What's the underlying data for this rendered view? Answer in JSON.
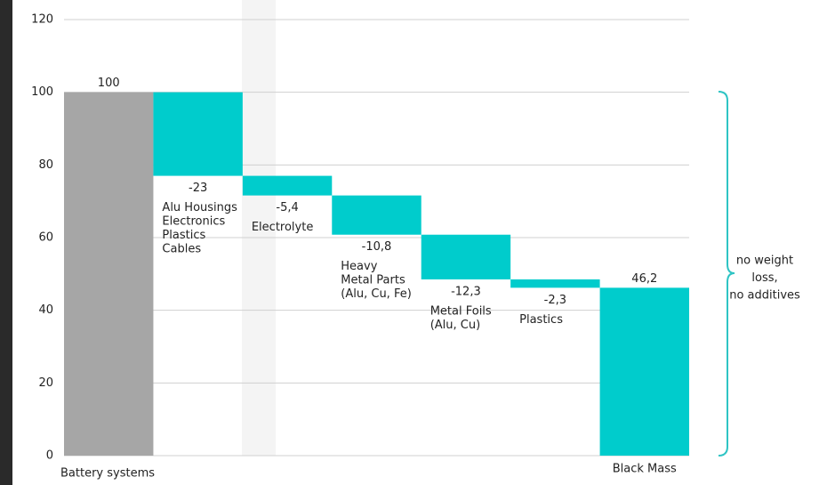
{
  "chart_data": {
    "type": "waterfall",
    "categories": [
      "Battery systems",
      [
        "Alu Housings",
        "Electronics",
        "Plastics",
        "Cables"
      ],
      [
        "Electrolyte"
      ],
      [
        "Heavy",
        "Metal Parts",
        "(Alu, Cu, Fe)"
      ],
      [
        "Metal Foils",
        "(Alu, Cu)"
      ],
      [
        "Plastics"
      ],
      "Black Mass"
    ],
    "values": [
      100,
      -23,
      -5.4,
      -10.8,
      -12.3,
      -2.3,
      46.2
    ],
    "value_labels": [
      "100",
      "-23",
      "-5,4",
      "-10,8",
      "-12,3",
      "-2,3",
      "46,2"
    ],
    "measures": [
      "absolute",
      "relative",
      "relative",
      "relative",
      "relative",
      "relative",
      "total"
    ],
    "colors": [
      "#a6a6a6",
      "#00cccc",
      "#00cccc",
      "#00cccc",
      "#00cccc",
      "#00cccc",
      "#00cccc"
    ],
    "ylim": [
      0,
      120
    ],
    "yticks": [
      0,
      20,
      40,
      60,
      80,
      100,
      120
    ],
    "grid": true,
    "annotation": [
      "no weight",
      "loss,",
      "no additives"
    ]
  }
}
